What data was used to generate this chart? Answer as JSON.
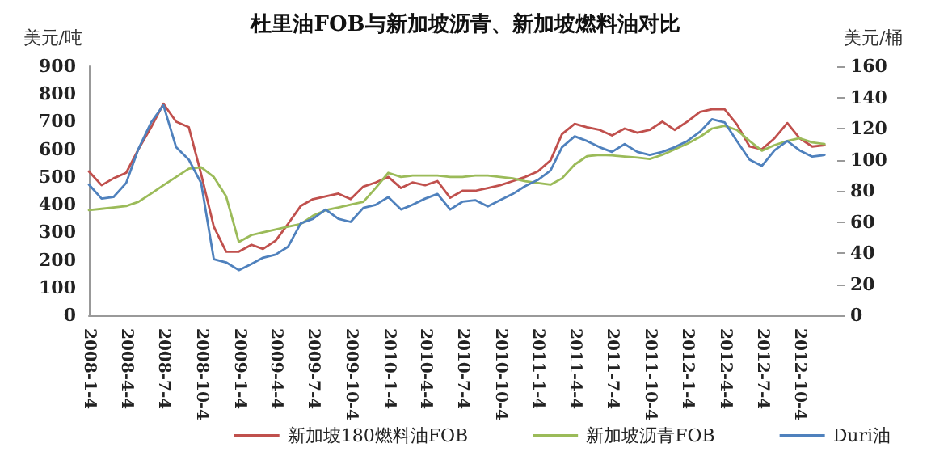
{
  "chart_data": {
    "type": "line",
    "title": "杜里油FOB与新加坡沥青、新加坡燃料油对比",
    "ylabel": "美元/吨",
    "y2label": "美元/桶",
    "x": [
      "2008-01-04",
      "2008-02-04",
      "2008-03-04",
      "2008-04-04",
      "2008-05-04",
      "2008-06-04",
      "2008-07-04",
      "2008-08-04",
      "2008-09-04",
      "2008-10-04",
      "2008-11-04",
      "2008-12-04",
      "2009-01-04",
      "2009-02-04",
      "2009-03-04",
      "2009-04-04",
      "2009-05-04",
      "2009-06-04",
      "2009-07-04",
      "2009-08-04",
      "2009-09-04",
      "2009-10-04",
      "2009-11-04",
      "2009-12-04",
      "2010-01-04",
      "2010-02-04",
      "2010-03-04",
      "2010-04-04",
      "2010-05-04",
      "2010-06-04",
      "2010-07-04",
      "2010-08-04",
      "2010-09-04",
      "2010-10-04",
      "2010-11-04",
      "2010-12-04",
      "2011-01-04",
      "2011-02-04",
      "2011-03-04",
      "2011-04-04",
      "2011-05-04",
      "2011-06-04",
      "2011-07-04",
      "2011-08-04",
      "2011-09-04",
      "2011-10-04",
      "2011-11-04",
      "2011-12-04",
      "2012-01-04",
      "2012-02-04",
      "2012-03-04",
      "2012-04-04",
      "2012-05-04",
      "2012-06-04",
      "2012-07-04",
      "2012-08-04",
      "2012-09-04",
      "2012-10-04",
      "2012-11-04",
      "2012-12-04"
    ],
    "series": [
      {
        "name": "新加坡180燃料油FOB",
        "color": "#c0504d",
        "values": [
          520,
          470,
          495,
          515,
          600,
          680,
          765,
          700,
          680,
          510,
          320,
          230,
          230,
          255,
          240,
          270,
          330,
          395,
          420,
          430,
          440,
          420,
          465,
          480,
          500,
          460,
          480,
          470,
          485,
          425,
          450,
          450,
          460,
          470,
          485,
          500,
          520,
          560,
          655,
          692,
          680,
          670,
          650,
          675,
          660,
          670,
          700,
          670,
          700,
          735,
          745,
          745,
          690,
          610,
          600,
          640,
          695,
          640,
          610,
          615
        ]
      },
      {
        "name": "新加坡沥青FOB",
        "color": "#9bbb59",
        "values": [
          380,
          385,
          390,
          395,
          410,
          440,
          470,
          500,
          530,
          535,
          500,
          430,
          265,
          290,
          300,
          310,
          320,
          330,
          360,
          380,
          390,
          400,
          410,
          460,
          515,
          500,
          505,
          505,
          505,
          500,
          500,
          505,
          505,
          500,
          495,
          485,
          478,
          472,
          495,
          545,
          575,
          580,
          578,
          574,
          570,
          565,
          580,
          600,
          620,
          645,
          675,
          685,
          670,
          630,
          595,
          615,
          630,
          640,
          625,
          619
        ]
      },
      {
        "name": "Duri油",
        "color": "#4f81bd",
        "axis": "y2",
        "values": [
          84,
          75,
          76,
          85,
          107,
          124,
          135,
          108,
          100,
          85,
          36,
          34,
          29,
          33,
          37,
          39,
          44,
          59,
          62,
          68,
          62,
          60,
          69,
          71,
          76,
          68,
          71,
          75,
          78,
          68,
          73,
          74,
          70,
          74,
          78,
          83,
          87,
          93,
          108,
          115,
          112,
          108,
          105,
          110,
          105,
          103,
          105,
          108,
          112,
          118,
          126,
          124,
          112,
          100,
          96,
          106,
          112,
          106,
          102,
          103
        ]
      }
    ],
    "xlim": [
      "2008-01-04",
      "2013-01-04"
    ],
    "xticks": [
      {
        "value": "2008-01-04",
        "label": "2008-1-4"
      },
      {
        "value": "2008-04-04",
        "label": "2008-4-4"
      },
      {
        "value": "2008-07-04",
        "label": "2008-7-4"
      },
      {
        "value": "2008-10-04",
        "label": "2008-10-4"
      },
      {
        "value": "2009-01-04",
        "label": "2009-1-4"
      },
      {
        "value": "2009-04-04",
        "label": "2009-4-4"
      },
      {
        "value": "2009-07-04",
        "label": "2009-7-4"
      },
      {
        "value": "2009-10-04",
        "label": "2009-10-4"
      },
      {
        "value": "2010-01-04",
        "label": "2010-1-4"
      },
      {
        "value": "2010-04-04",
        "label": "2010-4-4"
      },
      {
        "value": "2010-07-04",
        "label": "2010-7-4"
      },
      {
        "value": "2010-10-04",
        "label": "2010-10-4"
      },
      {
        "value": "2011-01-04",
        "label": "2011-1-4"
      },
      {
        "value": "2011-04-04",
        "label": "2011-4-4"
      },
      {
        "value": "2011-07-04",
        "label": "2011-7-4"
      },
      {
        "value": "2011-10-04",
        "label": "2011-10-4"
      },
      {
        "value": "2012-01-04",
        "label": "2012-1-4"
      },
      {
        "value": "2012-04-04",
        "label": "2012-4-4"
      },
      {
        "value": "2012-07-04",
        "label": "2012-7-4"
      },
      {
        "value": "2012-10-04",
        "label": "2012-10-4"
      }
    ],
    "ylim": [
      0,
      900
    ],
    "yticks": [
      0,
      100,
      200,
      300,
      400,
      500,
      600,
      700,
      800,
      900
    ],
    "y2lim": [
      0,
      160
    ],
    "y2ticks": [
      0,
      20,
      40,
      60,
      80,
      100,
      120,
      140,
      160
    ],
    "grid": false,
    "legend": "bottom",
    "marker": "none",
    "line_style": "solid"
  }
}
